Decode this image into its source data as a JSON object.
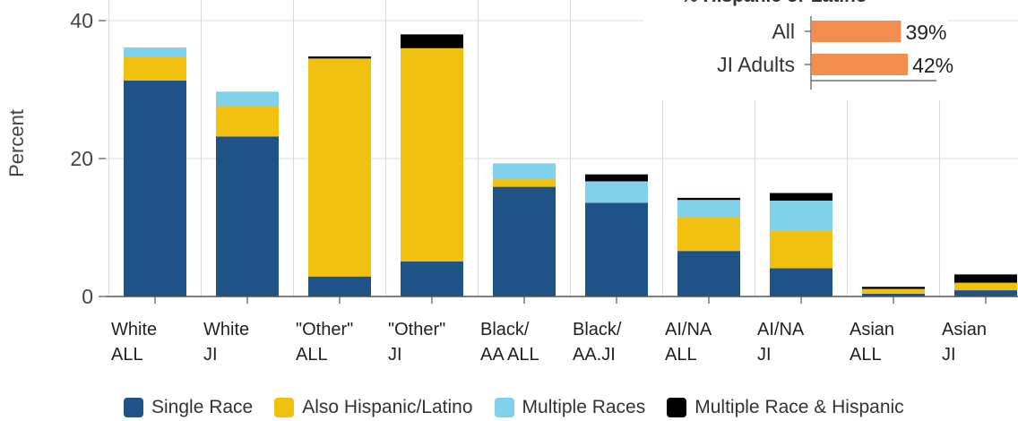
{
  "chart_data": {
    "type": "bar",
    "stacked": true,
    "ylabel": "Percent",
    "ylim": [
      0,
      40
    ],
    "yticks": [
      0,
      20,
      40
    ],
    "grid": true,
    "legend_position": "bottom",
    "categories": [
      [
        "White",
        "ALL"
      ],
      [
        "White",
        "JI"
      ],
      [
        "\"Other\"",
        "ALL"
      ],
      [
        "\"Other\"",
        "JI"
      ],
      [
        "Black/",
        "AA ALL"
      ],
      [
        "Black/",
        "AA.JI"
      ],
      [
        "AI/NA",
        "ALL"
      ],
      [
        "AI/NA",
        "JI"
      ],
      [
        "Asian",
        "ALL"
      ],
      [
        "Asian",
        "JI"
      ]
    ],
    "series": [
      {
        "name": "Single Race",
        "color": "#1f5287",
        "values": [
          31.3,
          23.2,
          2.9,
          5.1,
          15.9,
          13.6,
          6.6,
          4.1,
          0.4,
          0.9
        ]
      },
      {
        "name": "Also Hispanic/Latino",
        "color": "#f2c00e",
        "values": [
          3.5,
          4.4,
          31.6,
          30.9,
          1.1,
          0.0,
          4.9,
          5.4,
          0.7,
          1.1
        ]
      },
      {
        "name": "Multiple Races",
        "color": "#7fd1ec",
        "values": [
          1.3,
          2.1,
          0.0,
          0.0,
          2.3,
          3.1,
          2.5,
          4.4,
          0.0,
          0.0
        ]
      },
      {
        "name": "Multiple Race & Hispanic",
        "color": "#000000",
        "values": [
          0.0,
          0.0,
          0.3,
          2.0,
          0.0,
          1.0,
          0.3,
          1.1,
          0.3,
          1.2
        ]
      }
    ],
    "inset": {
      "title": "% Hispanic or Latino",
      "color": "#f38c4f",
      "categories": [
        "All",
        "JI Adults"
      ],
      "values": [
        39,
        42
      ],
      "labels": [
        "39%",
        "42%"
      ],
      "xlim": [
        0,
        55
      ]
    }
  }
}
